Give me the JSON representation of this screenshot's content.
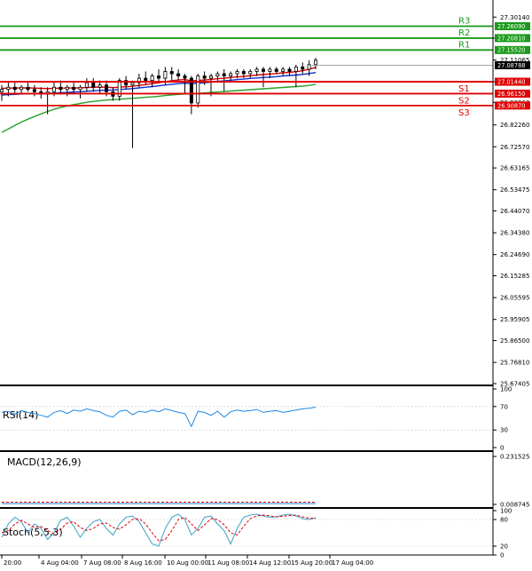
{
  "chart_data": {
    "type": "candlestick",
    "price_axis": {
      "ticks": [
        "27.30140",
        "27.20810",
        "27.11065",
        "27.01440",
        "26.92260",
        "26.82260",
        "26.72570",
        "26.63165",
        "26.53475",
        "26.44070",
        "26.34380",
        "26.24690",
        "26.15285",
        "26.05595",
        "25.95905",
        "25.86500",
        "25.76810",
        "25.67405"
      ],
      "range": [
        25.674,
        27.33
      ]
    },
    "time_axis": {
      "ticks": [
        "20:00",
        "4 Aug 04:00",
        "7 Aug 08:00",
        "8 Aug 16:00",
        "10 Aug 00:00",
        "11 Aug 08:00",
        "14 Aug 12:00",
        "15 Aug 20:00",
        "17 Aug 04:00"
      ]
    },
    "current_price": "27.08788",
    "levels": [
      {
        "name": "R3",
        "value": 27.2609,
        "tag": "27.26090",
        "kind": "resistance"
      },
      {
        "name": "R2",
        "value": 27.2081,
        "tag": "27.20810",
        "kind": "resistance"
      },
      {
        "name": "R1",
        "value": 27.1552,
        "tag": "27.15520",
        "kind": "resistance"
      },
      {
        "name": "S1",
        "value": 27.0144,
        "tag": "27.01440",
        "kind": "support"
      },
      {
        "name": "S2",
        "value": 26.9615,
        "tag": "26.96150",
        "kind": "support"
      },
      {
        "name": "S3",
        "value": 26.9087,
        "tag": "26.90870",
        "kind": "support"
      }
    ],
    "candles": [
      {
        "o": 26.97,
        "h": 27.0,
        "l": 26.93,
        "c": 26.98
      },
      {
        "o": 26.98,
        "h": 27.01,
        "l": 26.95,
        "c": 26.99
      },
      {
        "o": 26.99,
        "h": 27.01,
        "l": 26.96,
        "c": 26.98
      },
      {
        "o": 26.98,
        "h": 27.0,
        "l": 26.96,
        "c": 26.99
      },
      {
        "o": 26.99,
        "h": 27.01,
        "l": 26.97,
        "c": 26.98
      },
      {
        "o": 26.98,
        "h": 27.0,
        "l": 26.95,
        "c": 26.97
      },
      {
        "o": 26.97,
        "h": 26.99,
        "l": 26.94,
        "c": 26.96
      },
      {
        "o": 26.96,
        "h": 26.99,
        "l": 26.87,
        "c": 26.97
      },
      {
        "o": 26.97,
        "h": 27.01,
        "l": 26.95,
        "c": 26.99
      },
      {
        "o": 26.99,
        "h": 27.02,
        "l": 26.96,
        "c": 26.98
      },
      {
        "o": 26.98,
        "h": 27.0,
        "l": 26.95,
        "c": 26.99
      },
      {
        "o": 26.99,
        "h": 27.01,
        "l": 26.96,
        "c": 26.98
      },
      {
        "o": 26.98,
        "h": 27.0,
        "l": 26.94,
        "c": 26.99
      },
      {
        "o": 26.99,
        "h": 27.03,
        "l": 26.97,
        "c": 27.01
      },
      {
        "o": 27.01,
        "h": 27.03,
        "l": 26.97,
        "c": 26.99
      },
      {
        "o": 26.99,
        "h": 27.02,
        "l": 26.96,
        "c": 27.0
      },
      {
        "o": 27.0,
        "h": 27.02,
        "l": 26.95,
        "c": 26.97
      },
      {
        "o": 26.97,
        "h": 26.99,
        "l": 26.93,
        "c": 26.95
      },
      {
        "o": 26.95,
        "h": 27.03,
        "l": 26.93,
        "c": 27.02
      },
      {
        "o": 27.02,
        "h": 27.04,
        "l": 26.98,
        "c": 27.0
      },
      {
        "o": 27.0,
        "h": 27.02,
        "l": 26.72,
        "c": 27.01
      },
      {
        "o": 27.01,
        "h": 27.05,
        "l": 26.99,
        "c": 27.03
      },
      {
        "o": 27.03,
        "h": 27.06,
        "l": 27.0,
        "c": 27.02
      },
      {
        "o": 27.02,
        "h": 27.05,
        "l": 26.99,
        "c": 27.04
      },
      {
        "o": 27.04,
        "h": 27.07,
        "l": 27.01,
        "c": 27.03
      },
      {
        "o": 27.03,
        "h": 27.08,
        "l": 27.0,
        "c": 27.06
      },
      {
        "o": 27.06,
        "h": 27.08,
        "l": 27.02,
        "c": 27.05
      },
      {
        "o": 27.05,
        "h": 27.07,
        "l": 27.02,
        "c": 27.04
      },
      {
        "o": 27.04,
        "h": 27.05,
        "l": 26.96,
        "c": 27.03
      },
      {
        "o": 27.03,
        "h": 27.04,
        "l": 26.87,
        "c": 26.92
      },
      {
        "o": 26.92,
        "h": 27.05,
        "l": 26.9,
        "c": 27.04
      },
      {
        "o": 27.04,
        "h": 27.06,
        "l": 27.0,
        "c": 27.03
      },
      {
        "o": 27.03,
        "h": 27.05,
        "l": 26.95,
        "c": 27.04
      },
      {
        "o": 27.04,
        "h": 27.06,
        "l": 27.01,
        "c": 27.05
      },
      {
        "o": 27.05,
        "h": 27.07,
        "l": 26.97,
        "c": 27.04
      },
      {
        "o": 27.04,
        "h": 27.06,
        "l": 27.02,
        "c": 27.05
      },
      {
        "o": 27.05,
        "h": 27.07,
        "l": 27.03,
        "c": 27.06
      },
      {
        "o": 27.06,
        "h": 27.07,
        "l": 27.03,
        "c": 27.05
      },
      {
        "o": 27.05,
        "h": 27.07,
        "l": 27.03,
        "c": 27.06
      },
      {
        "o": 27.06,
        "h": 27.08,
        "l": 27.04,
        "c": 27.07
      },
      {
        "o": 27.07,
        "h": 27.08,
        "l": 26.99,
        "c": 27.06
      },
      {
        "o": 27.06,
        "h": 27.08,
        "l": 27.03,
        "c": 27.07
      },
      {
        "o": 27.07,
        "h": 27.08,
        "l": 27.05,
        "c": 27.06
      },
      {
        "o": 27.06,
        "h": 27.08,
        "l": 27.04,
        "c": 27.07
      },
      {
        "o": 27.07,
        "h": 27.08,
        "l": 27.04,
        "c": 27.06
      },
      {
        "o": 27.06,
        "h": 27.09,
        "l": 26.99,
        "c": 27.08
      },
      {
        "o": 27.08,
        "h": 27.1,
        "l": 27.05,
        "c": 27.07
      },
      {
        "o": 27.07,
        "h": 27.11,
        "l": 27.04,
        "c": 27.09
      },
      {
        "o": 27.09,
        "h": 27.12,
        "l": 27.07,
        "c": 27.11
      }
    ],
    "moving_averages": [
      {
        "color": "#e00000",
        "values": [
          26.985,
          26.986,
          26.986,
          26.987,
          26.987,
          26.986,
          26.985,
          26.984,
          26.985,
          26.986,
          26.986,
          26.987,
          26.987,
          26.989,
          26.99,
          26.991,
          26.99,
          26.988,
          26.99,
          26.992,
          26.994,
          26.998,
          27.002,
          27.006,
          27.01,
          27.015,
          27.019,
          27.022,
          27.024,
          27.018,
          27.02,
          27.022,
          27.025,
          27.028,
          27.03,
          27.033,
          27.036,
          27.038,
          27.041,
          27.044,
          27.046,
          27.049,
          27.051,
          27.054,
          27.056,
          27.059,
          27.063,
          27.07,
          27.078
        ]
      },
      {
        "color": "#1030d0",
        "values": [
          26.955,
          26.957,
          26.958,
          26.96,
          26.961,
          26.962,
          26.963,
          26.963,
          26.964,
          26.966,
          26.967,
          26.969,
          26.97,
          26.972,
          26.974,
          26.976,
          26.977,
          26.978,
          26.98,
          26.982,
          26.984,
          26.987,
          26.99,
          26.993,
          26.996,
          27.0,
          27.003,
          27.006,
          27.008,
          27.006,
          27.008,
          27.01,
          27.013,
          27.016,
          27.018,
          27.021,
          27.024,
          27.026,
          27.029,
          27.031,
          27.033,
          27.035,
          27.037,
          27.04,
          27.042,
          27.044,
          27.047,
          27.051,
          27.055
        ]
      },
      {
        "color": "#2aa02a",
        "values": [
          26.79,
          26.805,
          26.82,
          26.835,
          26.848,
          26.86,
          26.872,
          26.882,
          26.892,
          26.9,
          26.907,
          26.913,
          26.918,
          26.923,
          26.927,
          26.93,
          26.933,
          26.935,
          26.937,
          26.939,
          26.941,
          26.943,
          26.945,
          26.947,
          26.95,
          26.953,
          26.956,
          26.958,
          26.96,
          26.961,
          26.963,
          26.965,
          26.967,
          26.969,
          26.971,
          26.973,
          26.975,
          26.977,
          26.979,
          26.981,
          26.983,
          26.985,
          26.987,
          26.989,
          26.991,
          26.993,
          26.995,
          26.998,
          27.003
        ]
      }
    ],
    "indicators": [
      {
        "name": "RSI(14)",
        "scale": [
          "100",
          "70",
          "30",
          "0"
        ],
        "range": [
          0,
          100
        ],
        "values": [
          60,
          62,
          57,
          63,
          60,
          58,
          55,
          52,
          60,
          63,
          58,
          64,
          62,
          66,
          63,
          61,
          55,
          52,
          62,
          64,
          56,
          62,
          60,
          64,
          61,
          66,
          63,
          60,
          58,
          36,
          62,
          60,
          55,
          62,
          52,
          61,
          64,
          62,
          63,
          65,
          60,
          62,
          63,
          60,
          62,
          64,
          66,
          67,
          69
        ]
      },
      {
        "name": "MACD(12,26,9)",
        "scale": [
          "0.231525",
          "0.008745"
        ],
        "range": [
          -0.01,
          0.231525
        ],
        "values": [
          0.002,
          0.002,
          0.002,
          0.002,
          0.002,
          0.002,
          0.002,
          0.002,
          0.002,
          0.002,
          0.002,
          0.002,
          0.002,
          0.002,
          0.002,
          0.002,
          0.002,
          0.002,
          0.002,
          0.002,
          0.002,
          0.002,
          0.002,
          0.002,
          0.002,
          0.002,
          0.002,
          0.002,
          0.002,
          0.002,
          0.002,
          0.002,
          0.002,
          0.002,
          0.002,
          0.002,
          0.002,
          0.002,
          0.002,
          0.002,
          0.002,
          0.002,
          0.002,
          0.002,
          0.002,
          0.002,
          0.002,
          0.002,
          0.002
        ],
        "signal": [
          0.008745,
          0.008745,
          0.008745,
          0.008745,
          0.008745,
          0.008745,
          0.008745,
          0.008745,
          0.008745,
          0.008745,
          0.008745,
          0.008745,
          0.008745,
          0.008745,
          0.008745,
          0.008745,
          0.008745,
          0.008745,
          0.008745,
          0.008745,
          0.008745,
          0.008745,
          0.008745,
          0.008745,
          0.008745,
          0.008745,
          0.008745,
          0.008745,
          0.008745,
          0.008745,
          0.008745,
          0.008745,
          0.008745,
          0.008745,
          0.008745,
          0.008745,
          0.008745,
          0.008745,
          0.008745,
          0.008745,
          0.008745,
          0.008745,
          0.008745,
          0.008745,
          0.008745,
          0.008745,
          0.008745,
          0.008745,
          0.008745
        ]
      },
      {
        "name": "Stoch(5,5,3)",
        "scale": [
          "100",
          "80",
          "20",
          "0"
        ],
        "range": [
          0,
          100
        ],
        "values": [
          40,
          70,
          85,
          75,
          50,
          70,
          60,
          35,
          50,
          78,
          85,
          65,
          40,
          60,
          75,
          80,
          60,
          45,
          70,
          85,
          88,
          75,
          50,
          25,
          20,
          60,
          85,
          92,
          80,
          45,
          60,
          85,
          88,
          70,
          55,
          25,
          60,
          85,
          90,
          92,
          88,
          85,
          86,
          90,
          92,
          88,
          82,
          80,
          84
        ],
        "signal": [
          50,
          55,
          70,
          78,
          70,
          62,
          64,
          55,
          48,
          58,
          72,
          75,
          62,
          55,
          60,
          70,
          72,
          62,
          58,
          68,
          80,
          82,
          70,
          50,
          32,
          35,
          55,
          80,
          85,
          70,
          55,
          68,
          82,
          80,
          68,
          50,
          45,
          65,
          82,
          88,
          90,
          88,
          86,
          87,
          89,
          90,
          86,
          83,
          82
        ]
      }
    ]
  }
}
